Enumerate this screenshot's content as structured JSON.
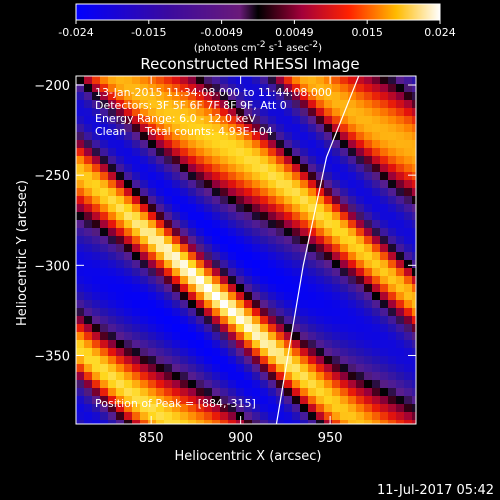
{
  "chart_data": {
    "type": "heatmap",
    "title": "Reconstructed RHESSI Image",
    "xlabel": "Heliocentric X (arcsec)",
    "ylabel": "Heliocentric Y (arcsec)",
    "xlim": [
      808,
      998
    ],
    "ylim": [
      -388,
      -195
    ],
    "xticks": [
      850,
      900,
      950
    ],
    "yticks": [
      -200,
      -250,
      -300,
      -350
    ],
    "colorbar": {
      "ticks": [
        "-0.024",
        "-0.015",
        "-0.0049",
        "0.0049",
        "0.015",
        "0.024"
      ],
      "label_main": "(photons cm",
      "label_exp1": "-2",
      "label_mid": " s",
      "label_exp2": "-1",
      "label_mid2": " asec",
      "label_exp3": "-2",
      "label_end": ")"
    },
    "annotations": {
      "time_range": "13-Jan-2015 11:34:08.000 to 11:44:08.000",
      "detectors": "Detectors: 3F 5F 6F 7F 8F 9F, Att 0",
      "energy": "Energy Range: 6.0 - 12.0 keV",
      "method_label": "Clean",
      "counts": "Total counts: 4.93E+04",
      "peak": "Position of Peak = [884,-315]"
    },
    "peak": {
      "x": 884,
      "y": -315
    },
    "limb_curve": [
      [
        920,
        -388
      ],
      [
        935,
        -300
      ],
      [
        948,
        -240
      ],
      [
        966,
        -195
      ]
    ],
    "footer_date": "11-Jul-2017 05:42"
  }
}
